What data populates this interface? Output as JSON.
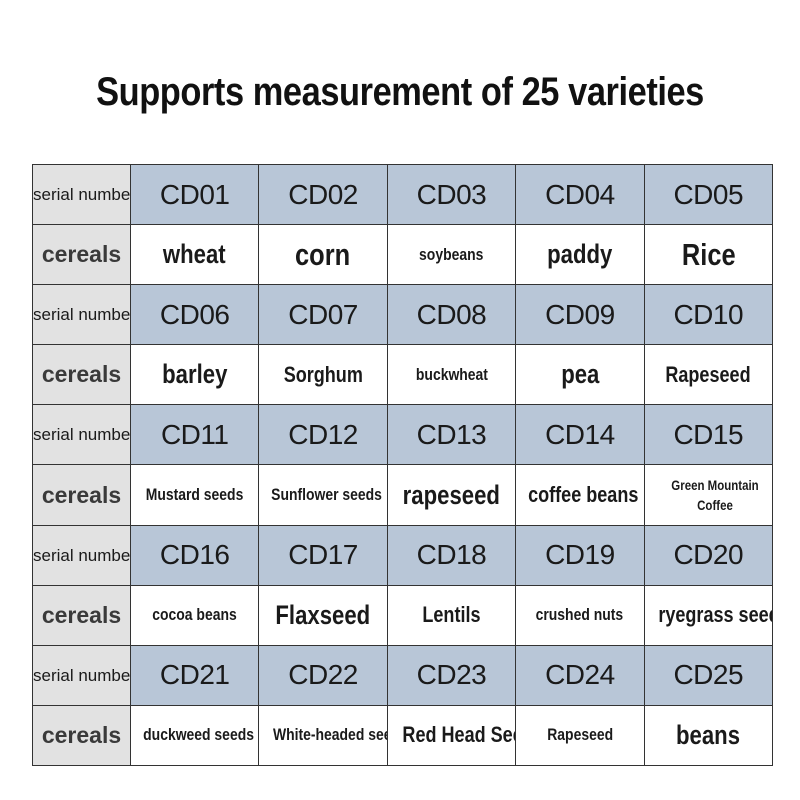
{
  "title": "Supports measurement of 25 varieties",
  "labels": {
    "serial": "serial number",
    "cereals": "cereals"
  },
  "rows": [
    {
      "codes": [
        "CD01",
        "CD02",
        "CD03",
        "CD04",
        "CD05"
      ],
      "names": [
        "wheat",
        "corn",
        "soybeans",
        "paddy",
        "Rice"
      ]
    },
    {
      "codes": [
        "CD06",
        "CD07",
        "CD08",
        "CD09",
        "CD10"
      ],
      "names": [
        "barley",
        "Sorghum",
        "buckwheat",
        "pea",
        "Rapeseed"
      ]
    },
    {
      "codes": [
        "CD11",
        "CD12",
        "CD13",
        "CD14",
        "CD15"
      ],
      "names": [
        "Mustard seeds",
        "Sunflower seeds",
        "rapeseed",
        "coffee beans",
        "Green Mountain Coffee"
      ]
    },
    {
      "codes": [
        "CD16",
        "CD17",
        "CD18",
        "CD19",
        "CD20"
      ],
      "names": [
        "cocoa beans",
        "Flaxseed",
        "Lentils",
        "crushed nuts",
        "ryegrass seed"
      ]
    },
    {
      "codes": [
        "CD21",
        "CD22",
        "CD23",
        "CD24",
        "CD25"
      ],
      "names": [
        "duckweed seeds",
        "White-headed seed",
        "Red Head Seed",
        "Rapeseed",
        "beans"
      ]
    }
  ]
}
